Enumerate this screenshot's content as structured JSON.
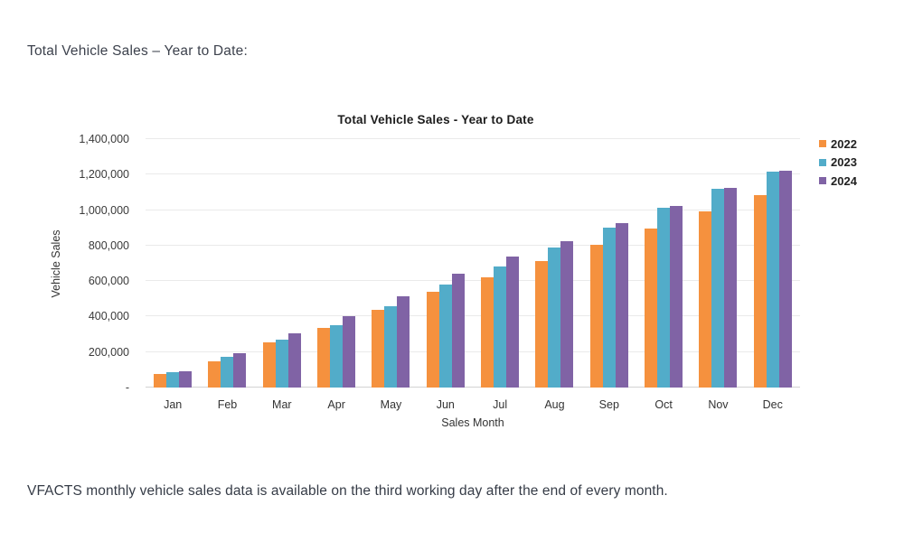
{
  "page": {
    "heading": "Total Vehicle Sales – Year to Date:",
    "footnote": "VFACTS monthly vehicle sales data is available on the third working day after the end of every month."
  },
  "chart_data": {
    "type": "bar",
    "title": "Total Vehicle Sales - Year to Date",
    "xlabel": "Sales Month",
    "ylabel": "Vehicle Sales",
    "categories": [
      "Jan",
      "Feb",
      "Mar",
      "Apr",
      "May",
      "Jun",
      "Jul",
      "Aug",
      "Sep",
      "Oct",
      "Nov",
      "Dec"
    ],
    "series": [
      {
        "name": "2022",
        "color": "#F5913E",
        "values": [
          76000,
          150000,
          255000,
          335000,
          437000,
          540000,
          620000,
          715000,
          806000,
          898000,
          994000,
          1082000
        ]
      },
      {
        "name": "2023",
        "color": "#52ACC9",
        "values": [
          86000,
          173000,
          268000,
          351000,
          460000,
          582000,
          680000,
          790000,
          900000,
          1012000,
          1122000,
          1218000
        ]
      },
      {
        "name": "2024",
        "color": "#8063A5",
        "values": [
          92000,
          196000,
          306000,
          402000,
          514000,
          640000,
          738000,
          826000,
          925000,
          1022000,
          1127000,
          1221000
        ]
      }
    ],
    "ylim": [
      0,
      1400000
    ],
    "ytick_step": 200000,
    "ytick_labels": [
      "-",
      "200,000",
      "400,000",
      "600,000",
      "800,000",
      "1,000,000",
      "1,200,000",
      "1,400,000"
    ],
    "grid": true,
    "legend_position": "right"
  }
}
